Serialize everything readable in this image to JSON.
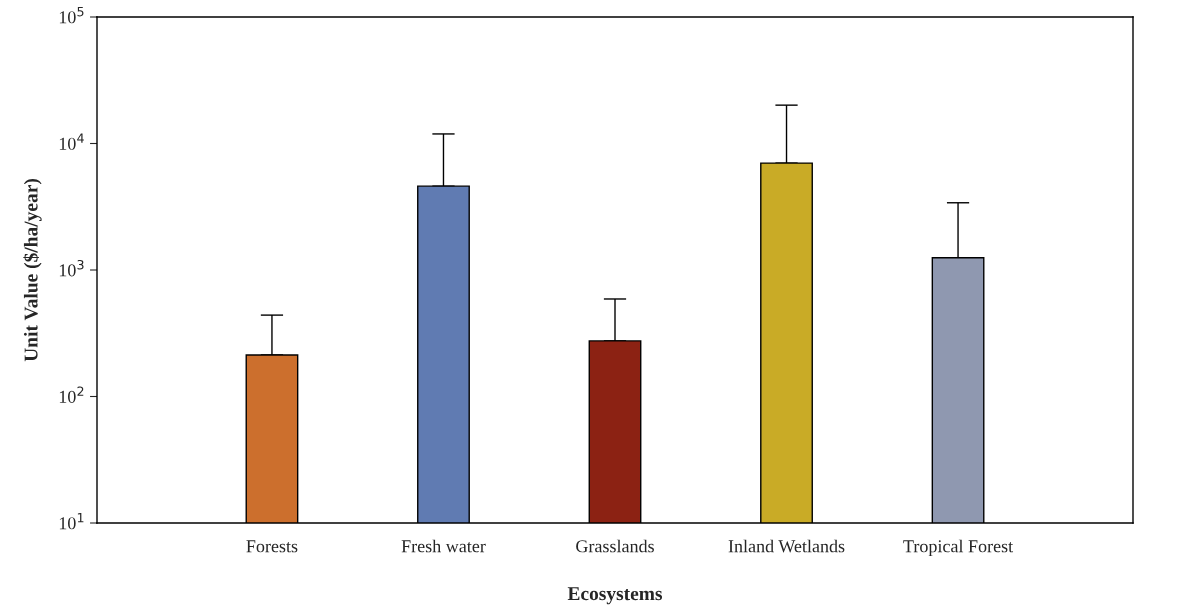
{
  "chart_data": {
    "type": "bar",
    "xlabel": "Ecosystems",
    "ylabel": "Unit Value ($/ha/year)",
    "categories": [
      "Forests",
      "Fresh water",
      "Grasslands",
      "Inland Wetlands",
      "Tropical Forest"
    ],
    "values": [
      213,
      4600,
      275,
      7000,
      1250
    ],
    "colors": [
      "#cc6f2d",
      "#607bb2",
      "#8c2213",
      "#c9ab26",
      "#8f98b0"
    ],
    "errors": [
      [
        213,
        440
      ],
      [
        4600,
        11900
      ],
      [
        275,
        590
      ],
      [
        7000,
        20100
      ],
      [
        1250,
        3400
      ]
    ],
    "log": "y",
    "ylim": [
      10,
      100000
    ],
    "yticks": [
      {
        "value": 10,
        "label": "10$^{1}$"
      },
      {
        "value": 100,
        "label": "10$^{2}$"
      },
      {
        "value": 1000,
        "label": "10$^{3}$"
      },
      {
        "value": 10000,
        "label": "10$^{4}$"
      },
      {
        "value": 100000,
        "label": "10$^{5}$"
      }
    ],
    "grid": false,
    "legend": false
  }
}
